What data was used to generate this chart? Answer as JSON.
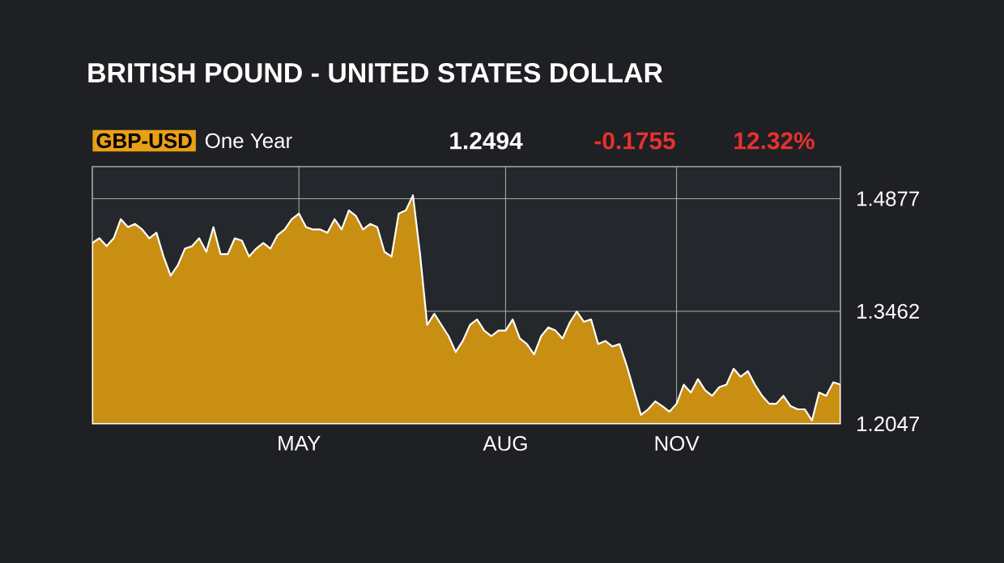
{
  "chart_data": {
    "type": "area",
    "title": "BRITISH POUND - UNITED STATES DOLLAR",
    "annotations": [
      "GBP-USD",
      "One Year",
      "1.2494",
      "-0.1755",
      "12.32%"
    ],
    "categories": [
      null,
      null,
      null,
      null,
      null,
      null,
      null,
      null,
      null,
      null,
      null,
      null,
      null,
      null,
      null,
      null,
      null,
      null,
      null,
      null,
      null,
      null,
      null,
      null,
      null,
      null,
      null,
      null,
      null,
      "MAY",
      null,
      null,
      null,
      null,
      null,
      null,
      null,
      null,
      null,
      null,
      null,
      null,
      null,
      null,
      null,
      null,
      null,
      null,
      null,
      null,
      null,
      null,
      null,
      null,
      null,
      null,
      null,
      null,
      "AUG",
      null,
      null,
      null,
      null,
      null,
      null,
      null,
      null,
      null,
      null,
      null,
      null,
      null,
      null,
      null,
      null,
      null,
      null,
      null,
      null,
      null,
      null,
      null,
      "NOV",
      null,
      null,
      null,
      null,
      null,
      null,
      null,
      null,
      null,
      null,
      null,
      null,
      null,
      null,
      null,
      null,
      null,
      null,
      null,
      null,
      null,
      null,
      null
    ],
    "values": [
      1.432,
      1.438,
      1.428,
      1.438,
      1.462,
      1.452,
      1.456,
      1.449,
      1.438,
      1.445,
      1.415,
      1.391,
      1.404,
      1.425,
      1.428,
      1.438,
      1.421,
      1.452,
      1.418,
      1.418,
      1.438,
      1.435,
      1.415,
      1.425,
      1.432,
      1.425,
      1.442,
      1.449,
      1.462,
      1.469,
      1.452,
      1.449,
      1.449,
      1.445,
      1.462,
      1.449,
      1.473,
      1.466,
      1.449,
      1.456,
      1.452,
      1.421,
      1.415,
      1.469,
      1.473,
      1.492,
      1.418,
      1.329,
      1.343,
      1.329,
      1.315,
      1.295,
      1.309,
      1.329,
      1.336,
      1.322,
      1.315,
      1.322,
      1.322,
      1.336,
      1.312,
      1.305,
      1.292,
      1.315,
      1.326,
      1.322,
      1.312,
      1.332,
      1.346,
      1.333,
      1.336,
      1.305,
      1.309,
      1.302,
      1.305,
      1.278,
      1.247,
      1.216,
      1.223,
      1.233,
      1.227,
      1.22,
      1.23,
      1.254,
      1.244,
      1.261,
      1.247,
      1.24,
      1.251,
      1.254,
      1.274,
      1.264,
      1.271,
      1.254,
      1.24,
      1.23,
      1.23,
      1.24,
      1.227,
      1.223,
      1.223,
      1.209,
      1.244,
      1.24,
      1.257,
      1.254
    ],
    "color": "#c98f12",
    "ylim": [
      1.2047,
      1.528
    ],
    "yticks": [
      {
        "value": 1.2047,
        "label": "1.2047"
      },
      {
        "value": 1.3462,
        "label": "1.3462"
      },
      {
        "value": 1.4877,
        "label": "1.4877"
      }
    ],
    "grid": true
  }
}
